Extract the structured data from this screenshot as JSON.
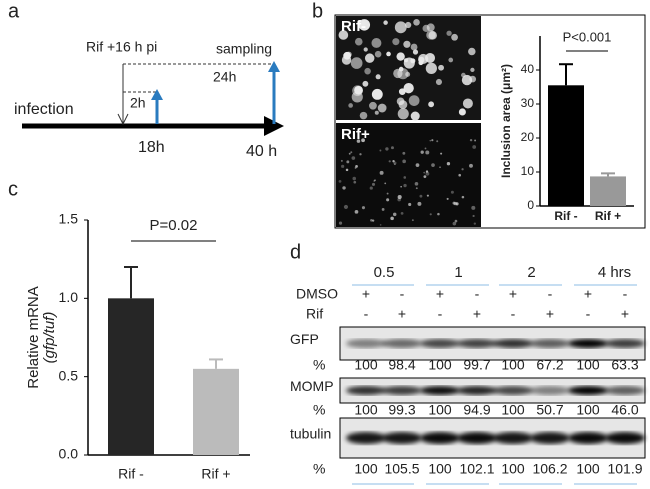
{
  "panel_a": {
    "label": "a",
    "treatment": "Rif +16 h pi",
    "sampling": "sampling",
    "interval_long": "24h",
    "interval_short": "2h",
    "infection": "infection",
    "time_early": "18h",
    "time_late": "40 h"
  },
  "panel_b": {
    "label": "b",
    "images": [
      "Rif-",
      "Rif+"
    ]
  },
  "chart_data": [
    {
      "type": "bar",
      "y_label": "Inclusion area (μm²)",
      "annotation": "P<0.001",
      "categories": [
        "Rif -",
        "Rif +"
      ],
      "values": [
        35.5,
        8.7
      ],
      "errors": [
        6.2,
        0.9
      ],
      "colors": [
        "#000000",
        "#999999"
      ],
      "ylim": [
        0,
        50
      ],
      "yticks": [
        0,
        10,
        20,
        30,
        40
      ]
    },
    {
      "type": "bar",
      "label": "c",
      "y_label": [
        "Relative mRNA",
        "(gfp/tuf)"
      ],
      "annotation": "P=0.02",
      "categories": [
        "Rif -",
        "Rif +"
      ],
      "values": [
        1.0,
        0.55
      ],
      "errors": [
        0.2,
        0.06
      ],
      "colors": [
        "#262626",
        "#bbbbbb"
      ],
      "ylim": [
        0,
        1.5
      ],
      "yticks": [
        {
          "value": 0,
          "label": "0.0"
        },
        {
          "value": 0.5,
          "label": "0.5"
        },
        {
          "value": 1,
          "label": "1.0"
        },
        {
          "value": 1.5,
          "label": "1.5"
        }
      ]
    }
  ],
  "panel_d": {
    "label": "d",
    "timepoints": [
      "0.5",
      "1",
      "2",
      "4 hrs"
    ],
    "treatments": [
      {
        "name": "DMSO",
        "signs": [
          "+",
          "-",
          "+",
          "-",
          "+",
          "-",
          "+",
          "-"
        ]
      },
      {
        "name": "Rif",
        "signs": [
          "-",
          "+",
          "-",
          "+",
          "-",
          "+",
          "-",
          "+"
        ]
      }
    ],
    "blots": [
      {
        "name": "GFP",
        "percent_label": "%",
        "values": [
          "100",
          "98.4",
          "100",
          "99.7",
          "100",
          "67.2",
          "100",
          "63.3"
        ]
      },
      {
        "name": "MOMP",
        "percent_label": "%",
        "values": [
          "100",
          "99.3",
          "100",
          "94.9",
          "100",
          "50.7",
          "100",
          "46.0"
        ]
      },
      {
        "name": "tubulin",
        "percent_label": "%",
        "values": [
          "100",
          "105.5",
          "100",
          "102.1",
          "100",
          "106.2",
          "100",
          "101.9"
        ]
      }
    ]
  }
}
